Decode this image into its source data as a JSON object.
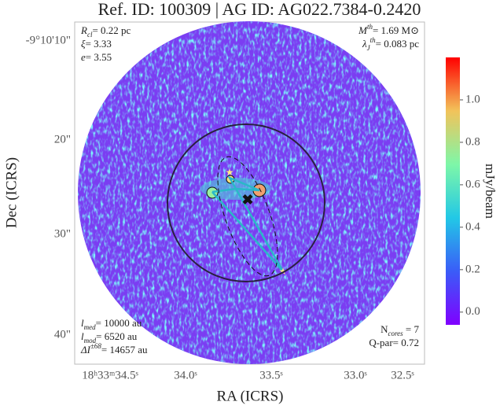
{
  "chart_data": {
    "type": "image",
    "title": "Ref. ID: 100309 | AG ID: AG022.7384-0.2420",
    "xlabel": "RA (ICRS)",
    "ylabel": "Dec (ICRS)",
    "xtick_labels": [
      "18ʰ33ᵐ34.5ˢ",
      "34.0ˢ",
      "33.5ˢ",
      "33.0ˢ",
      "32.5ˢ"
    ],
    "ytick_labels": [
      "-9°10'10\"",
      "20\"",
      "30\"",
      "40\""
    ],
    "colorbar": {
      "label": "mJy/beam",
      "lim": [
        -0.06,
        1.2
      ],
      "ticks": [
        {
          "value": 0,
          "label": "0.0"
        },
        0.2,
        0.4,
        0.6,
        0.8,
        {
          "value": 1,
          "label": "1.0"
        }
      ]
    },
    "annotations": {
      "top_left": [
        [
          {
            "text": "R",
            "style": "italic"
          },
          {
            "text": "cl",
            "style": "sub"
          },
          {
            "text": "= 0.22 pc"
          }
        ],
        [
          {
            "text": "ξ",
            "style": "italic"
          },
          {
            "text": "= 3.33"
          }
        ],
        [
          {
            "text": "e",
            "style": "italic"
          },
          {
            "text": "= 3.55"
          }
        ]
      ],
      "top_right": [
        [
          {
            "text": "M",
            "style": "italic"
          },
          {
            "text": "th",
            "style": "sup"
          },
          {
            "text": "= 1.69 M⊙"
          }
        ],
        [
          {
            "text": "λ",
            "style": "italic"
          },
          {
            "text": "J",
            "style": "sub"
          },
          {
            "text": "th",
            "style": "sup"
          },
          {
            "text": "= 0.083 pc"
          }
        ]
      ],
      "bottom_left": [
        [
          {
            "text": "l",
            "style": "italic"
          },
          {
            "text": "med",
            "style": "sub"
          },
          {
            "text": "= 10000 au"
          }
        ],
        [
          {
            "text": "l",
            "style": "italic"
          },
          {
            "text": "mod",
            "style": "sub"
          },
          {
            "text": "= 6520 au"
          }
        ],
        [
          {
            "text": "ΔI",
            "style": "italic"
          },
          {
            "text": "±68",
            "style": "sup"
          },
          {
            "text": "= 14657 au"
          }
        ]
      ],
      "bottom_right": [
        [
          {
            "text": "N"
          },
          {
            "text": "cores",
            "style": "sub"
          },
          {
            "text": " = 7"
          }
        ],
        [
          {
            "text": "Q-par= 0.72"
          }
        ]
      ]
    }
  }
}
